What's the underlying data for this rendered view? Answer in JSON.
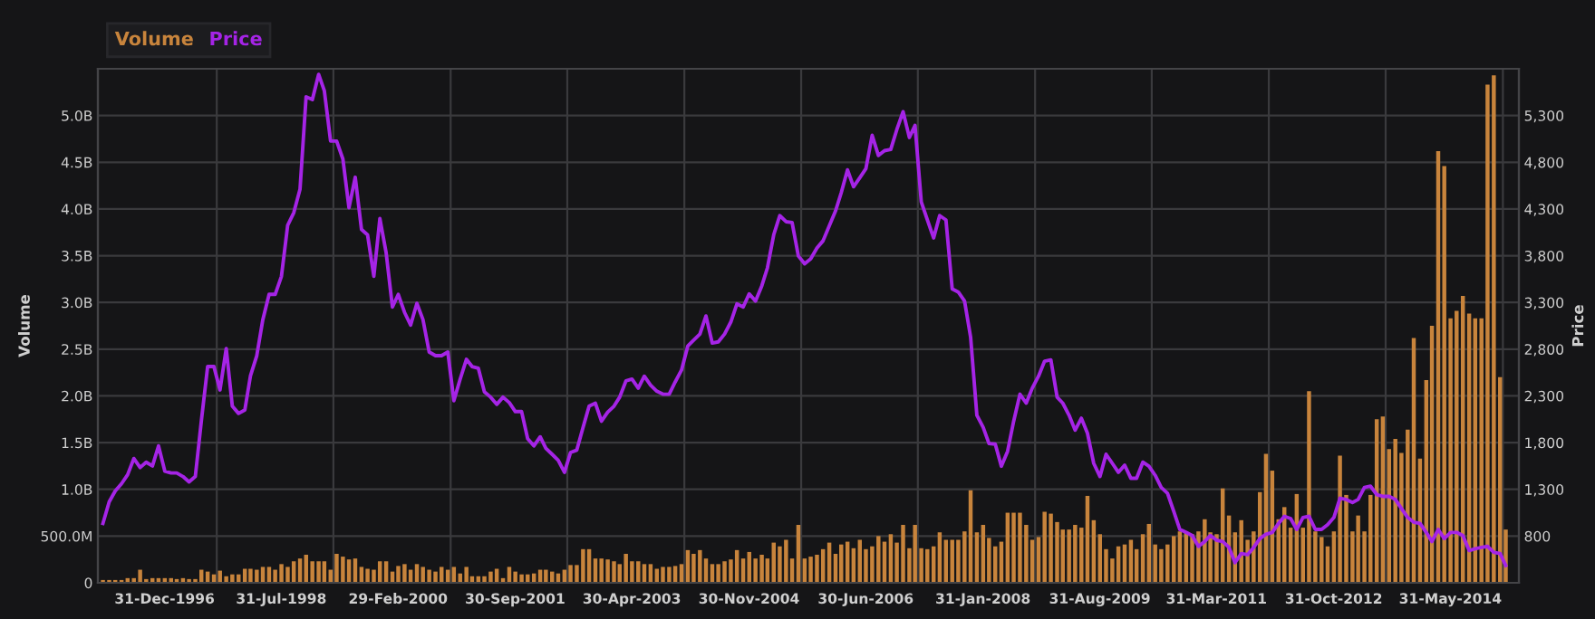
{
  "chart_data": {
    "type": "bar",
    "x": [
      "1996-03",
      "1996-04",
      "1996-05",
      "1996-06",
      "1996-07",
      "1996-08",
      "1996-09",
      "1996-10",
      "1996-11",
      "1996-12",
      "1997-01",
      "1997-02",
      "1997-03",
      "1997-04",
      "1997-05",
      "1997-06",
      "1997-07",
      "1997-08",
      "1997-09",
      "1997-10",
      "1997-11",
      "1997-12",
      "1998-01",
      "1998-02",
      "1998-03",
      "1998-04",
      "1998-05",
      "1998-06",
      "1998-07",
      "1998-08",
      "1998-09",
      "1998-10",
      "1998-11",
      "1998-12",
      "1999-01",
      "1999-02",
      "1999-03",
      "1999-04",
      "1999-05",
      "1999-06",
      "1999-07",
      "1999-08",
      "1999-09",
      "1999-10",
      "1999-11",
      "1999-12",
      "2000-01",
      "2000-02",
      "2000-03",
      "2000-04",
      "2000-05",
      "2000-06",
      "2000-07",
      "2000-08",
      "2000-09",
      "2000-10",
      "2000-11",
      "2000-12",
      "2001-01",
      "2001-02",
      "2001-03",
      "2001-04",
      "2001-05",
      "2001-06",
      "2001-07",
      "2001-08",
      "2001-09",
      "2001-10",
      "2001-11",
      "2001-12",
      "2002-01",
      "2002-02",
      "2002-03",
      "2002-04",
      "2002-05",
      "2002-06",
      "2002-07",
      "2002-08",
      "2002-09",
      "2002-10",
      "2002-11",
      "2002-12",
      "2003-01",
      "2003-02",
      "2003-03",
      "2003-04",
      "2003-05",
      "2003-06",
      "2003-07",
      "2003-08",
      "2003-09",
      "2003-10",
      "2003-11",
      "2003-12",
      "2004-01",
      "2004-02",
      "2004-03",
      "2004-04",
      "2004-05",
      "2004-06",
      "2004-07",
      "2004-08",
      "2004-09",
      "2004-10",
      "2004-11",
      "2004-12",
      "2005-01",
      "2005-02",
      "2005-03",
      "2005-04",
      "2005-05",
      "2005-06",
      "2005-07",
      "2005-08",
      "2005-09",
      "2005-10",
      "2005-11",
      "2005-12",
      "2006-01",
      "2006-02",
      "2006-03",
      "2006-04",
      "2006-05",
      "2006-06",
      "2006-07",
      "2006-08",
      "2006-09",
      "2006-10",
      "2006-11",
      "2006-12",
      "2007-01",
      "2007-02",
      "2007-03",
      "2007-04",
      "2007-05",
      "2007-06",
      "2007-07",
      "2007-08",
      "2007-09",
      "2007-10",
      "2007-11",
      "2007-12",
      "2008-01",
      "2008-02",
      "2008-03",
      "2008-04",
      "2008-05",
      "2008-06",
      "2008-07",
      "2008-08",
      "2008-09",
      "2008-10",
      "2008-11",
      "2008-12",
      "2009-01",
      "2009-02",
      "2009-03",
      "2009-04",
      "2009-05",
      "2009-06",
      "2009-07",
      "2009-08",
      "2009-09",
      "2009-10",
      "2009-11",
      "2009-12",
      "2010-01",
      "2010-02",
      "2010-03",
      "2010-04",
      "2010-05",
      "2010-06",
      "2010-07",
      "2010-08",
      "2010-09",
      "2010-10",
      "2010-11",
      "2010-12",
      "2011-01",
      "2011-02",
      "2011-03",
      "2011-04",
      "2011-05",
      "2011-06",
      "2011-07",
      "2011-08",
      "2011-09",
      "2011-10",
      "2011-11",
      "2011-12",
      "2012-01",
      "2012-02",
      "2012-03",
      "2012-04",
      "2012-05",
      "2012-06",
      "2012-07",
      "2012-08",
      "2012-09",
      "2012-10",
      "2012-11",
      "2012-12",
      "2013-01",
      "2013-02",
      "2013-03",
      "2013-04",
      "2013-05",
      "2013-06",
      "2013-07",
      "2013-08",
      "2013-09",
      "2013-10",
      "2013-11",
      "2013-12",
      "2014-01",
      "2014-02",
      "2014-03",
      "2014-04",
      "2014-05",
      "2014-06",
      "2014-07",
      "2014-08",
      "2014-09",
      "2014-10",
      "2014-11",
      "2014-12",
      "2015-01",
      "2015-02",
      "2015-03"
    ],
    "series": [
      {
        "name": "Volume",
        "color": "#c8843c",
        "values": [
          30000000.0,
          30000000.0,
          30000000.0,
          30000000.0,
          50000000.0,
          50000000.0,
          140000000.0,
          40000000.0,
          50000000.0,
          50000000.0,
          50000000.0,
          50000000.0,
          40000000.0,
          50000000.0,
          40000000.0,
          40000000.0,
          140000000.0,
          120000000.0,
          90000000.0,
          130000000.0,
          70000000.0,
          90000000.0,
          90000000.0,
          150000000.0,
          150000000.0,
          140000000.0,
          170000000.0,
          170000000.0,
          140000000.0,
          200000000.0,
          170000000.0,
          230000000.0,
          260000000.0,
          300000000.0,
          230000000.0,
          230000000.0,
          230000000.0,
          140000000.0,
          310000000.0,
          280000000.0,
          250000000.0,
          260000000.0,
          170000000.0,
          150000000.0,
          140000000.0,
          230000000.0,
          230000000.0,
          120000000.0,
          180000000.0,
          200000000.0,
          140000000.0,
          200000000.0,
          170000000.0,
          140000000.0,
          120000000.0,
          170000000.0,
          140000000.0,
          170000000.0,
          100000000.0,
          170000000.0,
          70000000.0,
          70000000.0,
          70000000.0,
          120000000.0,
          150000000.0,
          50000000.0,
          170000000.0,
          120000000.0,
          90000000.0,
          90000000.0,
          100000000.0,
          140000000.0,
          140000000.0,
          120000000.0,
          100000000.0,
          140000000.0,
          190000000.0,
          190000000.0,
          360000000.0,
          360000000.0,
          260000000.0,
          260000000.0,
          250000000.0,
          230000000.0,
          200000000.0,
          310000000.0,
          230000000.0,
          230000000.0,
          200000000.0,
          200000000.0,
          150000000.0,
          170000000.0,
          170000000.0,
          180000000.0,
          200000000.0,
          350000000.0,
          310000000.0,
          350000000.0,
          260000000.0,
          200000000.0,
          200000000.0,
          230000000.0,
          250000000.0,
          350000000.0,
          260000000.0,
          330000000.0,
          260000000.0,
          300000000.0,
          260000000.0,
          430000000.0,
          390000000.0,
          460000000.0,
          260000000.0,
          620000000.0,
          260000000.0,
          280000000.0,
          300000000.0,
          360000000.0,
          430000000.0,
          310000000.0,
          410000000.0,
          440000000.0,
          370000000.0,
          460000000.0,
          360000000.0,
          390000000.0,
          500000000.0,
          440000000.0,
          520000000.0,
          430000000.0,
          620000000.0,
          370000000.0,
          620000000.0,
          370000000.0,
          360000000.0,
          390000000.0,
          540000000.0,
          460000000.0,
          460000000.0,
          460000000.0,
          550000000.0,
          990000000.0,
          540000000.0,
          620000000.0,
          480000000.0,
          390000000.0,
          440000000.0,
          750000000.0,
          750000000.0,
          750000000.0,
          620000000.0,
          460000000.0,
          490000000.0,
          760000000.0,
          740000000.0,
          650000000.0,
          570000000.0,
          570000000.0,
          620000000.0,
          590000000.0,
          930000000.0,
          670000000.0,
          520000000.0,
          360000000.0,
          260000000.0,
          390000000.0,
          410000000.0,
          460000000.0,
          360000000.0,
          520000000.0,
          630000000.0,
          410000000.0,
          360000000.0,
          410000000.0,
          500000000.0,
          550000000.0,
          550000000.0,
          520000000.0,
          550000000.0,
          680000000.0,
          540000000.0,
          520000000.0,
          1010000000.0,
          720000000.0,
          540000000.0,
          670000000.0,
          460000000.0,
          550000000.0,
          970000000.0,
          1380000000.0,
          1200000000.0,
          680000000.0,
          810000000.0,
          590000000.0,
          950000000.0,
          590000000.0,
          2050000000.0,
          550000000.0,
          490000000.0,
          390000000.0,
          550000000.0,
          1360000000.0,
          940000000.0,
          550000000.0,
          720000000.0,
          550000000.0,
          940000000.0,
          1750000000.0,
          1780000000.0,
          1430000000.0,
          1540000000.0,
          1390000000.0,
          1640000000.0,
          2620000000.0,
          1330000000.0,
          2170000000.0,
          2750000000.0,
          4620000000.0,
          4460000000.0,
          2830000000.0,
          2910000000.0,
          3070000000.0,
          2880000000.0,
          2830000000.0,
          2830000000.0,
          5330000000.0,
          5430000000.0,
          2200000000.0,
          570000000.0
        ]
      },
      {
        "name": "Price",
        "type": "line",
        "axis": "y2",
        "color": "#a524e6",
        "values": [
          935,
          1167,
          1283,
          1360,
          1456,
          1630,
          1533,
          1590,
          1550,
          1765,
          1495,
          1475,
          1475,
          1437,
          1380,
          1437,
          2035,
          2614,
          2614,
          2363,
          2807,
          2190,
          2112,
          2150,
          2517,
          2730,
          3116,
          3386,
          3386,
          3580,
          4127,
          4260,
          4513,
          5500,
          5470,
          5740,
          5567,
          5027,
          5027,
          4834,
          4313,
          4640,
          4081,
          4023,
          3580,
          4197,
          3830,
          3251,
          3386,
          3193,
          3058,
          3290,
          3116,
          2769,
          2730,
          2730,
          2769,
          2248,
          2479,
          2691,
          2614,
          2595,
          2344,
          2286,
          2209,
          2286,
          2228,
          2132,
          2132,
          1842,
          1765,
          1862,
          1740,
          1675,
          1611,
          1482,
          1694,
          1720,
          1964,
          2190,
          2222,
          2029,
          2126,
          2190,
          2286,
          2460,
          2479,
          2383,
          2511,
          2415,
          2350,
          2318,
          2318,
          2450,
          2576,
          2833,
          2897,
          2962,
          3155,
          2865,
          2878,
          2962,
          3091,
          3284,
          3251,
          3392,
          3315,
          3477,
          3670,
          4023,
          4229,
          4164,
          4155,
          3797,
          3714,
          3766,
          3882,
          3959,
          4120,
          4280,
          4473,
          4718,
          4538,
          4635,
          4731,
          5088,
          4872,
          4924,
          4937,
          5149,
          5341,
          5065,
          5194,
          4376,
          4183,
          3990,
          4229,
          4183,
          3444,
          3411,
          3315,
          2929,
          2093,
          1964,
          1790,
          1784,
          1547,
          1707,
          2029,
          2318,
          2222,
          2383,
          2511,
          2672,
          2685,
          2286,
          2222,
          2093,
          1933,
          2061,
          1900,
          1578,
          1437,
          1675,
          1578,
          1482,
          1559,
          1418,
          1418,
          1591,
          1547,
          1450,
          1321,
          1257,
          1064,
          871,
          839,
          806,
          690,
          742,
          806,
          755,
          742,
          678,
          516,
          613,
          601,
          678,
          774,
          819,
          839,
          935,
          1012,
          987,
          871,
          999,
          1012,
          871,
          871,
          922,
          999,
          1205,
          1192,
          1160,
          1192,
          1321,
          1334,
          1244,
          1225,
          1225,
          1192,
          1096,
          999,
          948,
          935,
          839,
          742,
          871,
          774,
          839,
          839,
          806,
          646,
          665,
          678,
          690,
          626,
          613,
          485
        ]
      }
    ],
    "ylabel": "Volume",
    "y2label": "Price",
    "xlim": [
      "1996-02-05",
      "2015-05-05"
    ],
    "xticks": [
      {
        "value": "1996-12-31",
        "label": "31-Dec-1996"
      },
      {
        "value": "1997-09-15",
        "label": null
      },
      {
        "value": "1998-07-31",
        "label": "31-Jul-1998"
      },
      {
        "value": "1999-04-15",
        "label": null
      },
      {
        "value": "2000-02-29",
        "label": "29-Feb-2000"
      },
      {
        "value": "2000-11-15",
        "label": null
      },
      {
        "value": "2001-09-30",
        "label": "30-Sep-2001"
      },
      {
        "value": "2002-06-15",
        "label": null
      },
      {
        "value": "2003-04-30",
        "label": "30-Apr-2003"
      },
      {
        "value": "2004-01-15",
        "label": null
      },
      {
        "value": "2004-11-30",
        "label": "30-Nov-2004"
      },
      {
        "value": "2005-08-15",
        "label": null
      },
      {
        "value": "2006-06-30",
        "label": "30-Jun-2006"
      },
      {
        "value": "2007-03-15",
        "label": null
      },
      {
        "value": "2008-01-31",
        "label": "31-Jan-2008"
      },
      {
        "value": "2008-10-15",
        "label": null
      },
      {
        "value": "2009-08-31",
        "label": "31-Aug-2009"
      },
      {
        "value": "2010-05-15",
        "label": null
      },
      {
        "value": "2011-03-31",
        "label": "31-Mar-2011"
      },
      {
        "value": "2011-12-15",
        "label": null
      },
      {
        "value": "2012-10-31",
        "label": "31-Oct-2012"
      },
      {
        "value": "2013-07-15",
        "label": null
      },
      {
        "value": "2014-05-31",
        "label": "31-May-2014"
      },
      {
        "value": "2015-02-15",
        "label": null
      }
    ],
    "ylim": [
      0,
      5500000000
    ],
    "yticks": [
      {
        "value": 0,
        "label": "0"
      },
      {
        "value": 500000000,
        "label": "500.0M"
      },
      {
        "value": 1000000000,
        "label": "1.0B"
      },
      {
        "value": 1500000000,
        "label": "1.5B"
      },
      {
        "value": 2000000000,
        "label": "2.0B"
      },
      {
        "value": 2500000000,
        "label": "2.5B"
      },
      {
        "value": 3000000000,
        "label": "3.0B"
      },
      {
        "value": 3500000000,
        "label": "3.5B"
      },
      {
        "value": 4000000000,
        "label": "4.0B"
      },
      {
        "value": 4500000000,
        "label": "4.5B"
      },
      {
        "value": 5000000000,
        "label": "5.0B"
      }
    ],
    "y2lim": [
      300,
      5800
    ],
    "y2ticks": [
      {
        "value": 800,
        "label": "800"
      },
      {
        "value": 1300,
        "label": "1,300"
      },
      {
        "value": 1800,
        "label": "1,800"
      },
      {
        "value": 2300,
        "label": "2,300"
      },
      {
        "value": 2800,
        "label": "2,800"
      },
      {
        "value": 3300,
        "label": "3,300"
      },
      {
        "value": 3800,
        "label": "3,800"
      },
      {
        "value": 4300,
        "label": "4,300"
      },
      {
        "value": 4800,
        "label": "4,800"
      },
      {
        "value": 5300,
        "label": "5,300"
      }
    ],
    "grid": true,
    "legend": "top left"
  }
}
